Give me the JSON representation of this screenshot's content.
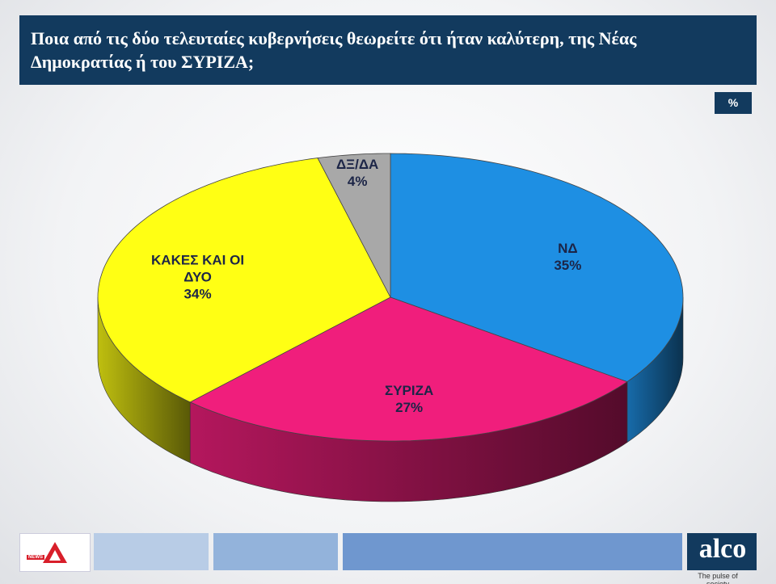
{
  "chart_data": {
    "type": "pie3d",
    "title": "Ποια από τις δύο τελευταίες κυβερνήσεις θεωρείτε ότι ήταν καλύτερη, της Νέας Δημοκρατίας ή του ΣΥΡΙΖΑ;",
    "unit": "%",
    "categories": [
      "ΝΔ",
      "ΣΥΡΙΖΑ",
      "ΚΑΚΕΣ ΚΑΙ ΟΙ ΔΥΟ",
      "ΔΞ/ΔΑ"
    ],
    "values": [
      35,
      27,
      34,
      4
    ],
    "value_labels": [
      "35%",
      "27%",
      "34%",
      "4%"
    ],
    "colors": [
      "#1e8fe3",
      "#f01e7c",
      "#ffff14",
      "#a8a8a8"
    ]
  },
  "footer": {
    "logo": "NEWS",
    "brand": "alco",
    "tagline": "The pulse of society"
  }
}
